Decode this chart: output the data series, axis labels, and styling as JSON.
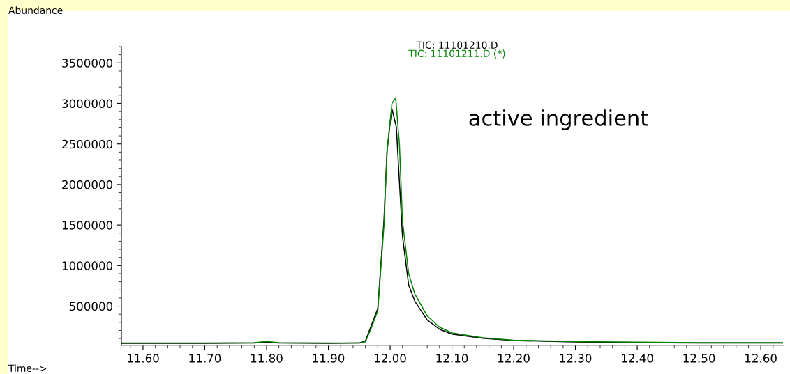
{
  "chart_data": {
    "type": "line",
    "xlabel": "Time-->",
    "ylabel": "Abundance",
    "xlim": [
      11.565,
      12.636
    ],
    "ylim": [
      15000,
      3700000
    ],
    "xticks": [
      {
        "value": 11.6,
        "label": "11.60"
      },
      {
        "value": 11.7,
        "label": "11.70"
      },
      {
        "value": 11.8,
        "label": "11.80"
      },
      {
        "value": 11.9,
        "label": "11.90"
      },
      {
        "value": 12.0,
        "label": "12.00"
      },
      {
        "value": 12.1,
        "label": "12.10"
      },
      {
        "value": 12.2,
        "label": "12.20"
      },
      {
        "value": 12.3,
        "label": "12.30"
      },
      {
        "value": 12.4,
        "label": "12.40"
      },
      {
        "value": 12.5,
        "label": "12.50"
      },
      {
        "value": 12.6,
        "label": "12.60"
      }
    ],
    "yticks": [
      500000,
      1000000,
      1500000,
      2000000,
      2500000,
      3000000,
      3500000
    ],
    "grid": false,
    "legend": false,
    "marker": "none",
    "line_style": "solid",
    "series": [
      {
        "name": "TIC: 11101210.D",
        "color": "#000000",
        "x": [
          11.565,
          11.7,
          11.78,
          11.8,
          11.82,
          11.9,
          11.95,
          11.96,
          11.97,
          11.98,
          11.99,
          11.995,
          12.0,
          12.003,
          12.01,
          12.02,
          12.03,
          12.04,
          12.06,
          12.08,
          12.1,
          12.15,
          12.2,
          12.3,
          12.4,
          12.5,
          12.636
        ],
        "values": [
          40000,
          40000,
          45000,
          55000,
          45000,
          40000,
          45000,
          70000,
          270000,
          470000,
          1560000,
          2420000,
          2760000,
          2930000,
          2710000,
          1360000,
          760000,
          560000,
          330000,
          215000,
          155000,
          103000,
          75000,
          58000,
          50000,
          45000,
          45000
        ]
      },
      {
        "name": "TIC: 11101211.D (*)",
        "color": "#008000",
        "x": [
          11.565,
          11.7,
          11.78,
          11.8,
          11.82,
          11.9,
          11.95,
          11.96,
          11.97,
          11.98,
          11.99,
          11.995,
          12.003,
          12.009,
          12.015,
          12.02,
          12.03,
          12.04,
          12.06,
          12.08,
          12.1,
          12.15,
          12.2,
          12.3,
          12.4,
          12.5,
          12.636
        ],
        "values": [
          45000,
          45000,
          50000,
          65000,
          50000,
          45000,
          45000,
          60000,
          240000,
          440000,
          1500000,
          2400000,
          3000000,
          3070000,
          2500000,
          1550000,
          900000,
          650000,
          380000,
          240000,
          170000,
          110000,
          80000,
          62000,
          55000,
          50000,
          50000
        ]
      }
    ],
    "annotations": [
      "active ingredient"
    ]
  }
}
